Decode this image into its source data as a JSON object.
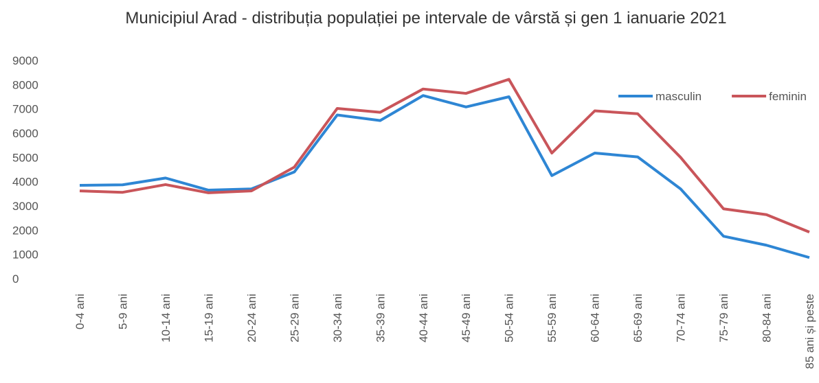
{
  "chart_data": {
    "type": "line",
    "title": "Municipiul Arad - distribuția populației pe intervale de vârstă și gen 1 ianuarie 2021",
    "categories": [
      "0-4 ani",
      "5-9 ani",
      "10-14 ani",
      "15-19 ani",
      "20-24 ani",
      "25-29 ani",
      "30-34 ani",
      "35-39 ani",
      "40-44 ani",
      "45-49 ani",
      "50-54 ani",
      "55-59 ani",
      "60-64 ani",
      "65-69 ani",
      "70-74 ani",
      "75-79 ani",
      "80-84 ani",
      "85 ani și peste"
    ],
    "series": [
      {
        "name": "masculin",
        "color": "#2e86d4",
        "values": [
          3850,
          3870,
          4150,
          3650,
          3700,
          4400,
          6750,
          6520,
          7550,
          7080,
          7500,
          4250,
          5180,
          5020,
          3700,
          1750,
          1380,
          870
        ]
      },
      {
        "name": "feminin",
        "color": "#c9555a",
        "values": [
          3620,
          3560,
          3880,
          3540,
          3620,
          4600,
          7020,
          6860,
          7820,
          7640,
          8220,
          5180,
          6920,
          6800,
          5000,
          2880,
          2640,
          1920
        ]
      }
    ],
    "ylim": [
      0,
      9000
    ],
    "yticks": [
      0,
      1000,
      2000,
      3000,
      4000,
      5000,
      6000,
      7000,
      8000,
      9000
    ],
    "grid": false,
    "legend": "top-right"
  }
}
